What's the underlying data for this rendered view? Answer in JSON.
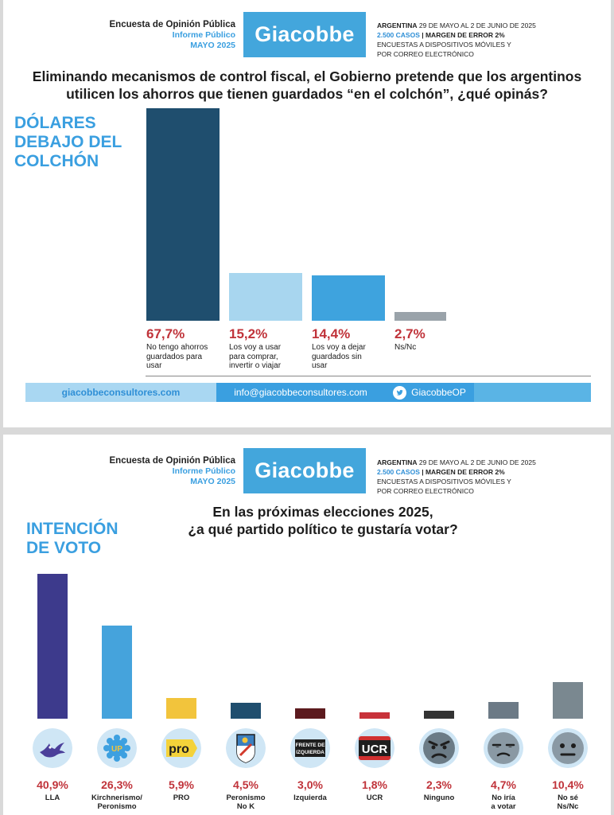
{
  "header": {
    "line1": "Encuesta de Opinión Pública",
    "line2": "Informe Público",
    "line3": "MAYO 2025",
    "logo": "Giacobbe",
    "country": "ARGENTINA",
    "dates": " 29 DE MAYO AL 2 DE JUNIO DE 2025",
    "cases": "2.500 CASOS",
    "margin": " | MARGEN DE ERROR 2%",
    "method1": "ENCUESTAS A DISPOSITIVOS MÓVILES Y",
    "method2": "POR CORREO ELECTRÓNICO"
  },
  "panel1": {
    "question_line1": "Eliminando mecanismos de control fiscal, el Gobierno pretende que los argentinos",
    "question_line2": "utilicen los ahorros que tienen guardados “en el colchón”, ¿qué opinás?",
    "title_lines": [
      "DÓLARES",
      "DEBAJO DEL",
      "COLCHÓN"
    ]
  },
  "panel2": {
    "question_line1": "En las próximas elecciones 2025,",
    "question_line2": "¿a qué partido político te gustaría votar?",
    "title_lines": [
      "INTENCIÓN",
      "DE VOTO"
    ]
  },
  "footer": {
    "website": "giacobbeconsultores.com",
    "email": "info@giacobbeconsultores.com",
    "twitter": "GiacobbeOP"
  },
  "chart_data": [
    {
      "type": "bar",
      "categories": [
        "No tengo ahorros guardados para usar",
        "Los voy a usar para comprar, invertir o viajar",
        "Los voy a dejar guardados sin usar",
        "Ns/Nc"
      ],
      "label_lines": [
        [
          "No tengo ahorros",
          "guardados para",
          "usar"
        ],
        [
          "Los voy a usar",
          "para comprar,",
          "invertir o viajar"
        ],
        [
          "Los voy a dejar",
          "guardados sin",
          "usar"
        ],
        [
          "Ns/Nc"
        ]
      ],
      "values": [
        67.7,
        15.2,
        14.4,
        2.7
      ],
      "value_labels": [
        "67,7%",
        "15,2%",
        "14,4%",
        "2,7%"
      ],
      "colors": [
        "#1f4e6e",
        "#a8d6ef",
        "#3ea3de",
        "#9aa3aa"
      ],
      "ylim": [
        0,
        67.7
      ]
    },
    {
      "type": "bar",
      "categories": [
        "LLA",
        "Kirchnerismo/ Peronismo",
        "PRO",
        "Peronismo No K",
        "Izquierda",
        "UCR",
        "Ninguno",
        "No iría a votar",
        "No sé Ns/Nc"
      ],
      "label_lines": [
        [
          "LLA"
        ],
        [
          "Kirchnerismo/",
          "Peronismo"
        ],
        [
          "PRO"
        ],
        [
          "Peronismo",
          "No K"
        ],
        [
          "Izquierda"
        ],
        [
          "UCR"
        ],
        [
          "Ninguno"
        ],
        [
          "No iría",
          "a votar"
        ],
        [
          "No sé",
          "Ns/Nc"
        ]
      ],
      "values": [
        40.9,
        26.3,
        5.9,
        4.5,
        3.0,
        1.8,
        2.3,
        4.7,
        10.4
      ],
      "value_labels": [
        "40,9%",
        "26,3%",
        "5,9%",
        "4,5%",
        "3,0%",
        "1,8%",
        "2,3%",
        "4,7%",
        "10,4%"
      ],
      "colors": [
        "#3d3a8c",
        "#45a3dc",
        "#f2c43c",
        "#1f4e6e",
        "#5c1a1e",
        "#c8323a",
        "#333333",
        "#6c7a86",
        "#7a8890"
      ],
      "icons": [
        "lla-eagle-icon",
        "up-logo-icon",
        "pro-logo-icon",
        "peronismo-no-k-icon",
        "frente-izquierda-icon",
        "ucr-logo-icon",
        "angry-face-icon",
        "unamused-face-icon",
        "neutral-face-icon"
      ],
      "icon_texts": [
        "",
        "UP",
        "pro",
        "",
        "FRENTE DE IZQUIERDA",
        "UCR",
        "",
        "",
        ""
      ],
      "ylim": [
        0,
        40.9
      ]
    }
  ]
}
